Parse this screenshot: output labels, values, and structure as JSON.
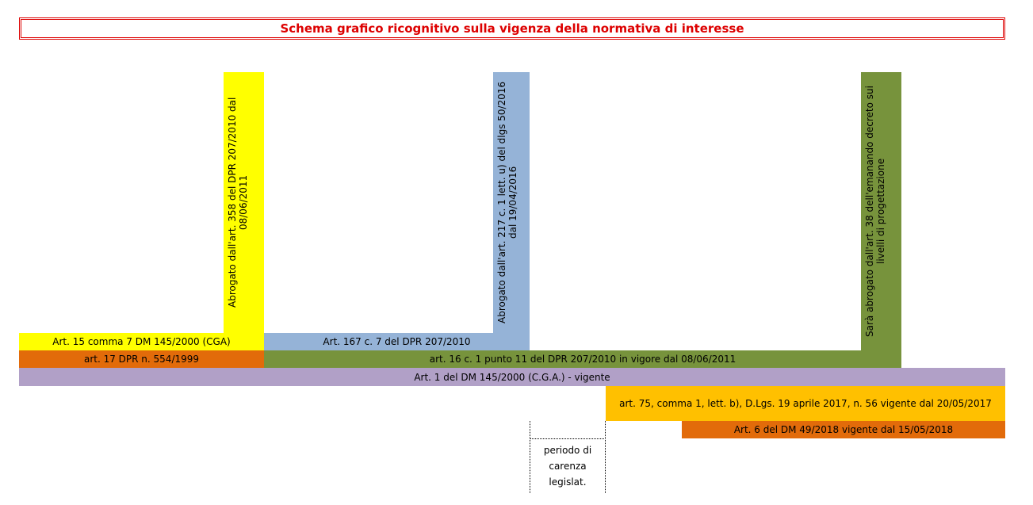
{
  "header": {
    "title": "Schema grafico ricognitivo sulla vigenza della normativa di interesse"
  },
  "vertical_notes": [
    {
      "text": "Abrogato dall'art. 358 del DPR 207/2010 dal 08/06/2011"
    },
    {
      "text": "Abrogato dall'art. 217 c. 1 lett. u) del dlgs 50/2016 dal 19/04/2016"
    },
    {
      "text": "Sarà abrogato dall'art. 38 dell'emanando decreto sui livelli di progettazione"
    }
  ],
  "bars": [
    {
      "text": "Art. 15 comma 7 DM 145/2000 (CGA)"
    },
    {
      "text": "Art. 167 c. 7 del DPR 207/2010"
    },
    {
      "text": "art. 17 DPR n. 554/1999"
    },
    {
      "text": "art. 16 c. 1 punto 11 del DPR 207/2010 in vigore dal 08/06/2011"
    },
    {
      "text": "Art. 1 del DM 145/2000 (C.G.A.) - vigente"
    },
    {
      "text": "art. 75, comma 1, lett. b), D.Lgs. 19 aprile 2017, n. 56 vigente dal 20/05/2017"
    },
    {
      "text": "Art. 6 del DM 49/2018 vigente dal 15/05/2018"
    }
  ],
  "gap_note": {
    "text": "periodo di carenza legislat."
  }
}
